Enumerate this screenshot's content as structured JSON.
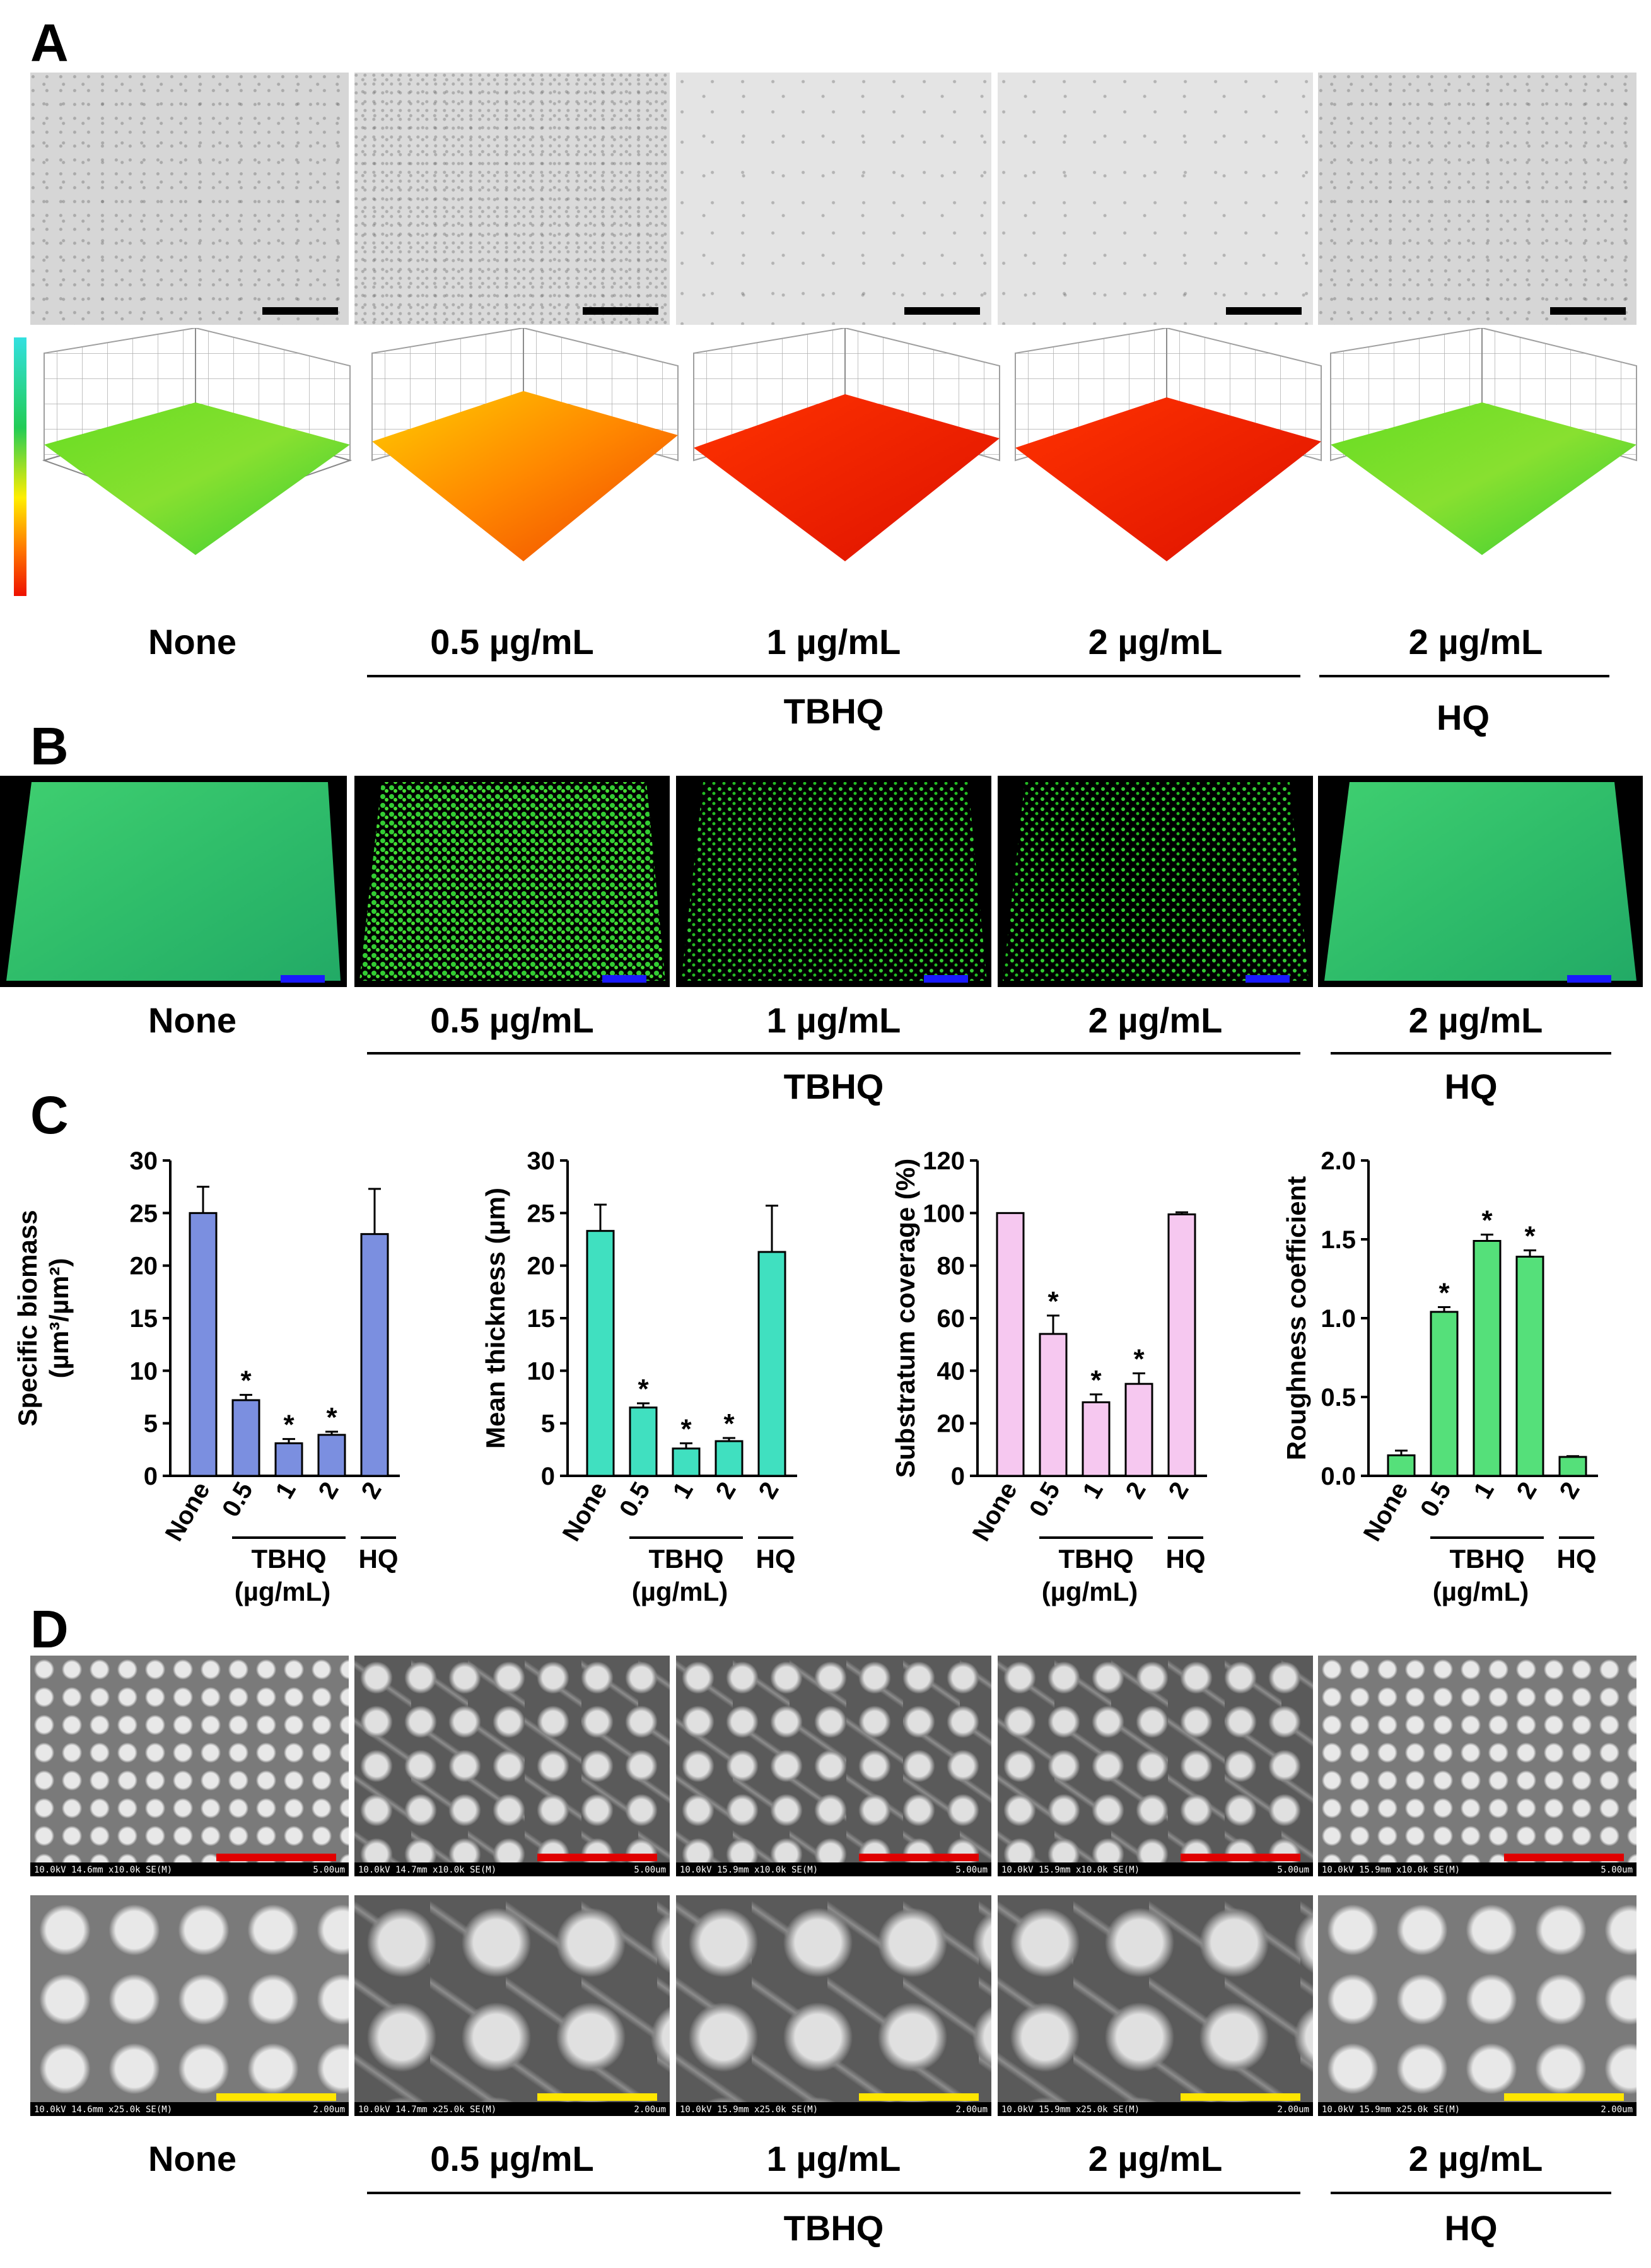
{
  "panels": {
    "a": "A",
    "b": "B",
    "c": "C",
    "d": "D"
  },
  "conditions": [
    "None",
    "0.5 µg/mL",
    "1 µg/mL",
    "2 µg/mL",
    "2 µg/mL"
  ],
  "groups": {
    "tbhq": "TBHQ",
    "hq": "HQ"
  },
  "sem_info": {
    "top": [
      "10.0kV 14.6mm x10.0k SE(M)",
      "10.0kV 14.7mm x10.0k SE(M)",
      "10.0kV 15.9mm x10.0k SE(M)",
      "10.0kV 15.9mm x10.0k SE(M)",
      "10.0kV 15.9mm x10.0k SE(M)"
    ],
    "top_scale": "5.00um",
    "bottom": [
      "10.0kV 14.6mm x25.0k SE(M)",
      "10.0kV 14.7mm x25.0k SE(M)",
      "10.0kV 15.9mm x25.0k SE(M)",
      "10.0kV 15.9mm x25.0k SE(M)",
      "10.0kV 15.9mm x25.0k SE(M)"
    ],
    "bottom_scale": "2.00um"
  },
  "colors": {
    "scalebar_a": "#000000",
    "scalebar_b": "#1a1aff",
    "scalebar_d_top": "#e00000",
    "scalebar_d_bottom": "#ffe600",
    "colormap": [
      "#33e0e0",
      "#22cc55",
      "#ffee00",
      "#ff7700",
      "#ee1100"
    ]
  },
  "chart_data": [
    {
      "type": "bar",
      "categories": [
        "None",
        "0.5",
        "1",
        "2",
        "2"
      ],
      "values": [
        25.0,
        7.2,
        3.1,
        3.9,
        23.0
      ],
      "errors": [
        2.5,
        0.5,
        0.4,
        0.3,
        4.3
      ],
      "significance": [
        "",
        "*",
        "*",
        "*",
        ""
      ],
      "ylabel_line1": "Specific biomass",
      "ylabel_line2": "(µm³/µm²)",
      "yticks": [
        0,
        5,
        10,
        15,
        20,
        25,
        30
      ],
      "ylim": [
        0,
        30
      ],
      "color": "#7b8fe0",
      "group_labels": [
        "TBHQ",
        "HQ"
      ],
      "unit_label": "(µg/mL)"
    },
    {
      "type": "bar",
      "categories": [
        "None",
        "0.5",
        "1",
        "2",
        "2"
      ],
      "values": [
        23.3,
        6.5,
        2.6,
        3.3,
        21.3
      ],
      "errors": [
        2.5,
        0.4,
        0.5,
        0.3,
        4.4
      ],
      "significance": [
        "",
        "*",
        "*",
        "*",
        ""
      ],
      "ylabel_line1": "Mean thickness (µm)",
      "ylabel_line2": "",
      "yticks": [
        0,
        5,
        10,
        15,
        20,
        25,
        30
      ],
      "ylim": [
        0,
        30
      ],
      "color": "#40e0c0",
      "group_labels": [
        "TBHQ",
        "HQ"
      ],
      "unit_label": "(µg/mL)"
    },
    {
      "type": "bar",
      "categories": [
        "None",
        "0.5",
        "1",
        "2",
        "2"
      ],
      "values": [
        100,
        54,
        28,
        35,
        99.5
      ],
      "errors": [
        0,
        7,
        3,
        4,
        0.8
      ],
      "significance": [
        "",
        "*",
        "*",
        "*",
        ""
      ],
      "ylabel_line1": "Substratum coverage (%)",
      "ylabel_line2": "",
      "yticks": [
        0,
        20,
        40,
        60,
        80,
        100,
        120
      ],
      "ylim": [
        0,
        120
      ],
      "color": "#f6c8f0",
      "group_labels": [
        "TBHQ",
        "HQ"
      ],
      "unit_label": "(µg/mL)"
    },
    {
      "type": "bar",
      "categories": [
        "None",
        "0.5",
        "1",
        "2",
        "2"
      ],
      "values": [
        0.13,
        1.04,
        1.49,
        1.39,
        0.12
      ],
      "errors": [
        0.03,
        0.03,
        0.04,
        0.04,
        0.005
      ],
      "significance": [
        "",
        "*",
        "*",
        "*",
        ""
      ],
      "ylabel_line1": "Roughness coefficient",
      "ylabel_line2": "",
      "yticks": [
        "0.0",
        "0.5",
        "1.0",
        "1.5",
        "2.0"
      ],
      "ylim": [
        0,
        2.0
      ],
      "color": "#55e07a",
      "group_labels": [
        "TBHQ",
        "HQ"
      ],
      "unit_label": "(µg/mL)"
    }
  ]
}
